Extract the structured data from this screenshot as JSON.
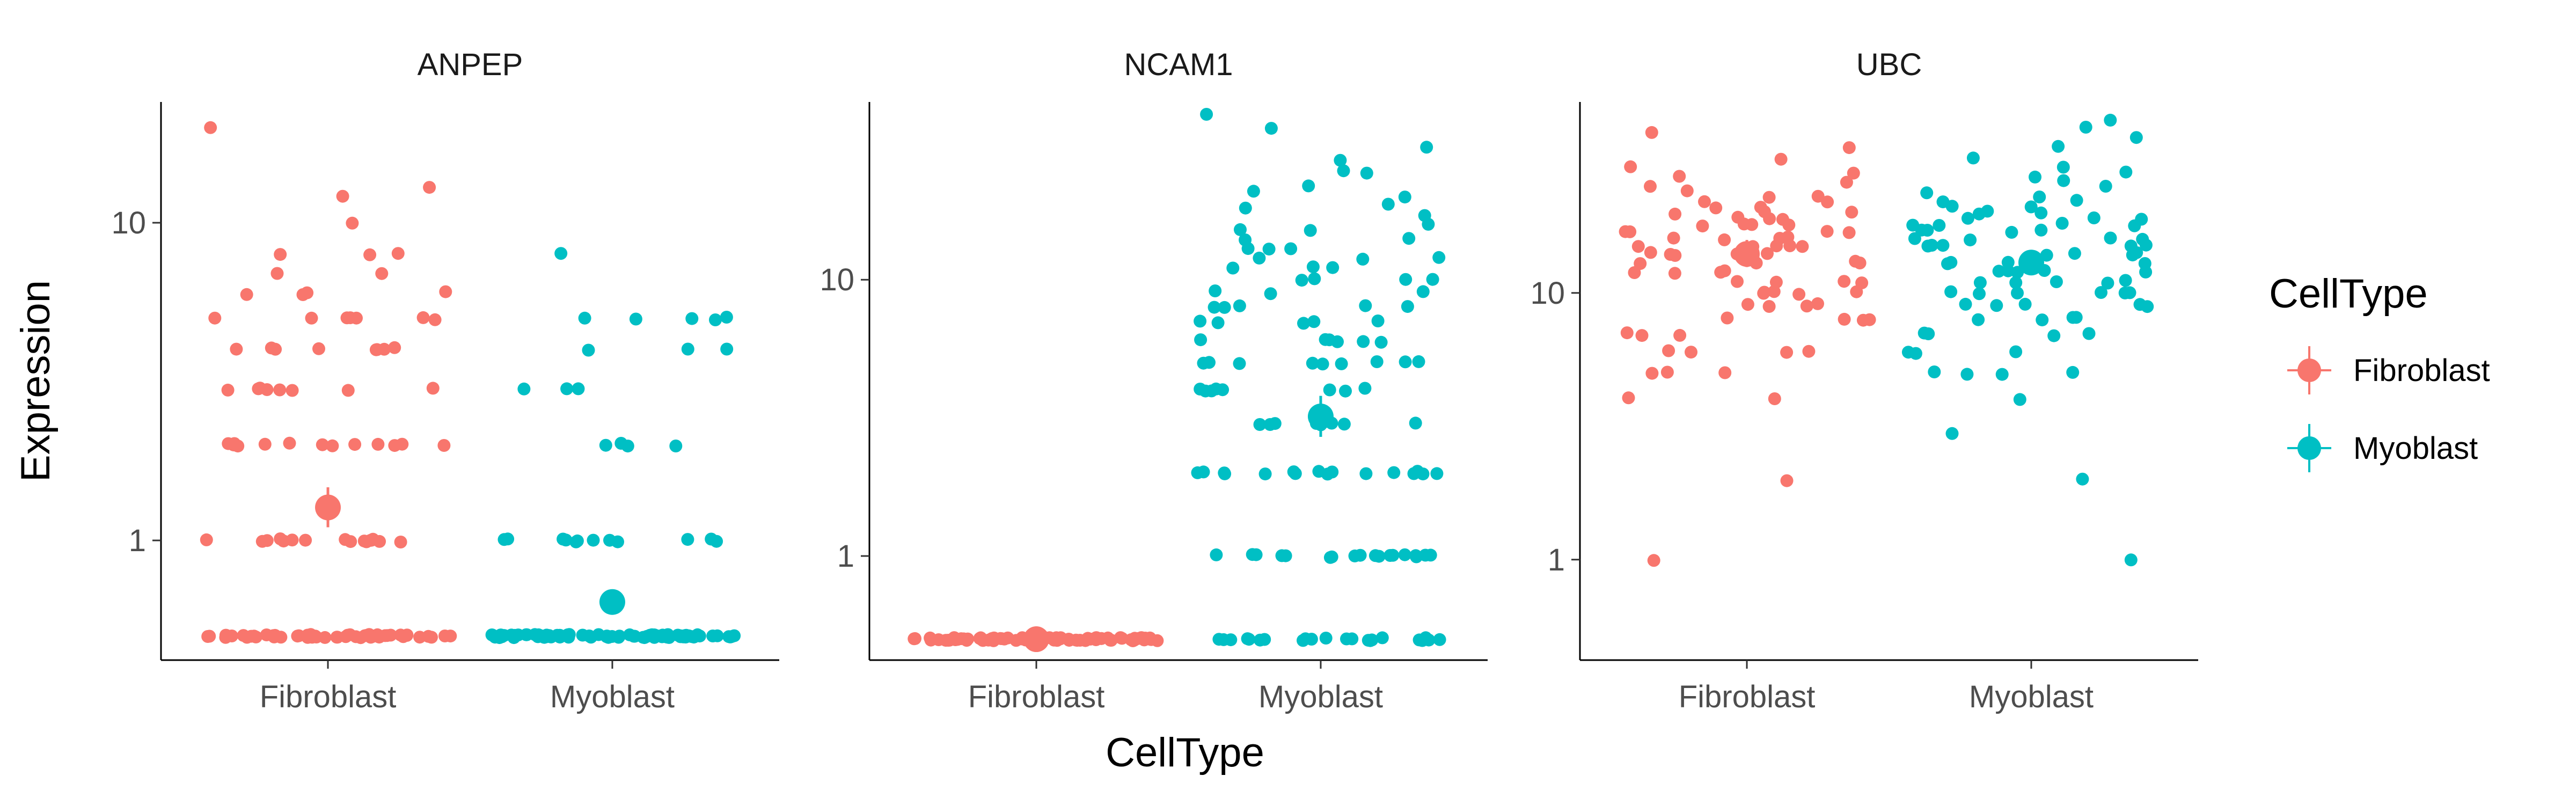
{
  "chart_data": {
    "type": "scatter",
    "description_facets": [
      "ANPEP",
      "NCAM1",
      "UBC"
    ],
    "xlabel": "CellType",
    "ylabel": "Expression",
    "y_scale": "log10",
    "categories": [
      "Fibroblast",
      "Myoblast"
    ],
    "legend": {
      "title": "CellType",
      "position": "right",
      "entries": [
        {
          "label": "Fibroblast",
          "color": "#F8766D"
        },
        {
          "label": "Myoblast",
          "color": "#00BFC4"
        }
      ]
    },
    "grid": false,
    "panels": [
      {
        "title": "ANPEP",
        "ylim": [
          0.42,
          24
        ],
        "yticks": [
          {
            "value": 1,
            "label": "1"
          },
          {
            "value": 10,
            "label": "10"
          }
        ],
        "summary": [
          {
            "category": "Fibroblast",
            "mean": 1.27,
            "low": 1.1,
            "high": 1.47
          },
          {
            "category": "Myoblast",
            "mean": 0.64,
            "low": 0.6,
            "high": 0.69
          }
        ],
        "groups": [
          {
            "category": "Fibroblast",
            "values": [
              0.5,
              0.5,
              0.5,
              0.5,
              0.5,
              0.5,
              0.5,
              0.5,
              0.5,
              0.5,
              0.5,
              0.5,
              0.5,
              0.5,
              0.5,
              0.5,
              0.5,
              0.5,
              0.5,
              0.5,
              0.5,
              0.5,
              0.5,
              0.5,
              0.5,
              0.5,
              0.5,
              0.5,
              0.5,
              0.5,
              0.5,
              0.5,
              0.5,
              0.5,
              0.5,
              0.5,
              0.5,
              0.5,
              0.5,
              0.5,
              0.5,
              0.5,
              0.5,
              0.5,
              0.5,
              0.5,
              0.5,
              0.5,
              0.5,
              0.5,
              0.5,
              0.5,
              0.5,
              0.5,
              0.5,
              1,
              1,
              1,
              1,
              1,
              1,
              1,
              1,
              1,
              1,
              1,
              1,
              1,
              1,
              1,
              1,
              2,
              2,
              2,
              2,
              2,
              2,
              2,
              2,
              2,
              2,
              2,
              2,
              2,
              3,
              3,
              3,
              3,
              3,
              3,
              3,
              3,
              4,
              4,
              4,
              4,
              4,
              4,
              4,
              4,
              5,
              5,
              5,
              5,
              5,
              5,
              5,
              6,
              6,
              6,
              6,
              7,
              7,
              8,
              8,
              8,
              10,
              12,
              13,
              20
            ]
          },
          {
            "category": "Myoblast",
            "values": [
              0.5,
              0.5,
              0.5,
              0.5,
              0.5,
              0.5,
              0.5,
              0.5,
              0.5,
              0.5,
              0.5,
              0.5,
              0.5,
              0.5,
              0.5,
              0.5,
              0.5,
              0.5,
              0.5,
              0.5,
              0.5,
              0.5,
              0.5,
              0.5,
              0.5,
              0.5,
              0.5,
              0.5,
              0.5,
              0.5,
              0.5,
              0.5,
              0.5,
              0.5,
              0.5,
              0.5,
              0.5,
              0.5,
              0.5,
              0.5,
              0.5,
              0.5,
              0.5,
              0.5,
              0.5,
              0.5,
              0.5,
              0.5,
              0.5,
              0.5,
              0.5,
              0.5,
              0.5,
              0.5,
              0.5,
              0.5,
              0.5,
              0.5,
              0.5,
              0.5,
              0.5,
              0.5,
              0.5,
              0.5,
              0.5,
              0.5,
              0.5,
              0.5,
              0.5,
              0.5,
              0.5,
              0.5,
              0.5,
              0.5,
              0.5,
              1,
              1,
              1,
              1,
              1,
              1,
              1,
              1,
              1,
              1,
              1,
              1,
              2,
              2,
              2,
              2,
              3,
              3,
              3,
              4,
              4,
              4,
              5,
              5,
              5,
              5,
              5,
              8
            ]
          }
        ]
      },
      {
        "title": "NCAM1",
        "ylim": [
          0.42,
          44
        ],
        "yticks": [
          {
            "value": 1,
            "label": "1"
          },
          {
            "value": 10,
            "label": "10"
          }
        ],
        "summary": [
          {
            "category": "Fibroblast",
            "mean": 0.5,
            "low": 0.49,
            "high": 0.51
          },
          {
            "category": "Myoblast",
            "mean": 3.2,
            "low": 2.7,
            "high": 3.8
          }
        ],
        "groups": [
          {
            "category": "Fibroblast",
            "values": [
              0.5,
              0.5,
              0.5,
              0.5,
              0.5,
              0.5,
              0.5,
              0.5,
              0.5,
              0.5,
              0.5,
              0.5,
              0.5,
              0.5,
              0.5,
              0.5,
              0.5,
              0.5,
              0.5,
              0.5,
              0.5,
              0.5,
              0.5,
              0.5,
              0.5,
              0.5,
              0.5,
              0.5,
              0.5,
              0.5,
              0.5,
              0.5,
              0.5,
              0.5,
              0.5,
              0.5,
              0.5,
              0.5,
              0.5,
              0.5,
              0.5,
              0.5,
              0.5,
              0.5,
              0.5,
              0.5,
              0.5,
              0.5,
              0.5,
              0.5,
              0.5,
              0.5,
              0.5,
              0.5,
              0.5,
              0.5,
              0.5,
              0.5,
              0.5,
              0.5,
              0.5,
              0.5,
              0.5,
              0.5,
              0.5,
              0.5,
              0.5,
              0.5,
              0.5,
              0.5,
              0.5,
              0.5,
              0.5,
              0.5,
              0.5,
              0.5,
              0.5,
              0.5,
              0.5,
              0.5
            ]
          },
          {
            "category": "Myoblast",
            "values": [
              0.5,
              0.5,
              0.5,
              0.5,
              0.5,
              0.5,
              0.5,
              0.5,
              0.5,
              0.5,
              0.5,
              0.5,
              0.5,
              0.5,
              0.5,
              0.5,
              0.5,
              0.5,
              0.5,
              0.5,
              0.5,
              0.5,
              1,
              1,
              1,
              1,
              1,
              1,
              1,
              1,
              1,
              1,
              1,
              1,
              1,
              1,
              1,
              1,
              1,
              1,
              2,
              2,
              2,
              2,
              2,
              2,
              2,
              2,
              2,
              2,
              2,
              2,
              2,
              2,
              2,
              2,
              3,
              3,
              3,
              3,
              3,
              3,
              3,
              3,
              4,
              4,
              4,
              4,
              4,
              4,
              4,
              4,
              5,
              5,
              5,
              5,
              5,
              5,
              5,
              5,
              5,
              6,
              6,
              6,
              6,
              6,
              6,
              7,
              7,
              7,
              7,
              7,
              8,
              8,
              8,
              8,
              8,
              9,
              9,
              9,
              10,
              10,
              10,
              10,
              11,
              11,
              11,
              12,
              12,
              12,
              13,
              13,
              13,
              14,
              14,
              15,
              15,
              16,
              17,
              18,
              19,
              20,
              21,
              22,
              24,
              25,
              27,
              30,
              35,
              40
            ]
          }
        ]
      },
      {
        "title": "UBC",
        "ylim": [
          0.42,
          52
        ],
        "yticks": [
          {
            "value": 1,
            "label": "1"
          },
          {
            "value": 10,
            "label": "10"
          }
        ],
        "summary": [
          {
            "category": "Fibroblast",
            "mean": 14,
            "low": 12.5,
            "high": 15.8
          },
          {
            "category": "Myoblast",
            "mean": 13,
            "low": 11.8,
            "high": 14.3
          }
        ],
        "groups": [
          {
            "category": "Fibroblast",
            "values": [
              1,
              2,
              4,
              4,
              5,
              5,
              5,
              6,
              6,
              6,
              6,
              7,
              7,
              7,
              8,
              8,
              8,
              8,
              9,
              9,
              9,
              9,
              10,
              10,
              10,
              10,
              10,
              11,
              11,
              11,
              11,
              12,
              12,
              12,
              12,
              13,
              13,
              13,
              13,
              14,
              14,
              14,
              14,
              14,
              15,
              15,
              15,
              15,
              15,
              16,
              16,
              16,
              16,
              17,
              17,
              17,
              17,
              18,
              18,
              18,
              18,
              19,
              19,
              19,
              20,
              20,
              20,
              21,
              21,
              22,
              22,
              23,
              23,
              24,
              25,
              26,
              27,
              28,
              30,
              32,
              35,
              40
            ]
          },
          {
            "category": "Myoblast",
            "values": [
              1,
              2,
              3,
              4,
              5,
              5,
              5,
              5,
              6,
              6,
              6,
              7,
              7,
              7,
              7,
              8,
              8,
              8,
              8,
              9,
              9,
              9,
              9,
              9,
              10,
              10,
              10,
              10,
              10,
              10,
              11,
              11,
              11,
              11,
              11,
              12,
              12,
              12,
              12,
              12,
              13,
              13,
              13,
              13,
              13,
              14,
              14,
              14,
              14,
              14,
              15,
              15,
              15,
              15,
              15,
              16,
              16,
              16,
              16,
              17,
              17,
              17,
              17,
              18,
              18,
              18,
              18,
              19,
              19,
              19,
              20,
              20,
              20,
              21,
              21,
              22,
              22,
              23,
              24,
              25,
              26,
              27,
              28,
              30,
              32,
              35,
              38,
              42,
              45
            ]
          }
        ]
      }
    ]
  }
}
